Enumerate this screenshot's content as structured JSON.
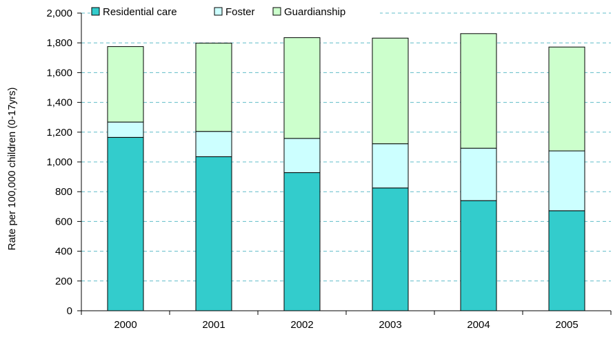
{
  "chart_data": {
    "type": "bar",
    "stacked": true,
    "categories": [
      "2000",
      "2001",
      "2002",
      "2003",
      "2004",
      "2005"
    ],
    "series": [
      {
        "name": "Residential care",
        "values": [
          1165,
          1035,
          928,
          825,
          740,
          672
        ],
        "color": "#33cccc"
      },
      {
        "name": "Foster",
        "values": [
          103,
          170,
          230,
          297,
          352,
          402
        ],
        "color": "#ccffff"
      },
      {
        "name": "Guardianship",
        "values": [
          507,
          593,
          677,
          710,
          770,
          698
        ],
        "color": "#ccffcc"
      }
    ],
    "title": "",
    "xlabel": "",
    "ylabel": "Rate per 100,000 children (0-17yrs)",
    "ylim": [
      0,
      2000
    ],
    "yticks": [
      0,
      200,
      400,
      600,
      800,
      1000,
      1200,
      1400,
      1600,
      1800,
      2000
    ],
    "ytick_labels": [
      "0",
      "200",
      "400",
      "600",
      "800",
      "1,000",
      "1,200",
      "1,400",
      "1,600",
      "1,800",
      "2,000"
    ],
    "grid": true,
    "gridline_color": "#5fbcc8",
    "legend_position": "top"
  }
}
